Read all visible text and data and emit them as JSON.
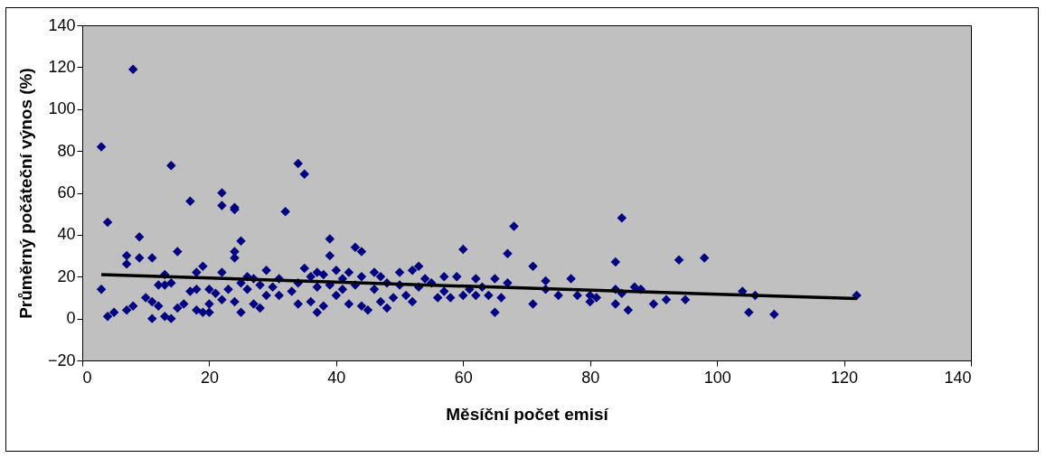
{
  "chart_data": {
    "type": "scatter",
    "xlabel": "Měsíční počet emisí",
    "ylabel": "Průměrný počáteční výnos (%)",
    "xlim": [
      0,
      140
    ],
    "ylim": [
      -20,
      140
    ],
    "xticks": [
      0,
      20,
      40,
      60,
      80,
      100,
      120,
      140
    ],
    "yticks": [
      -20,
      0,
      20,
      40,
      60,
      80,
      100,
      120,
      140
    ],
    "series": [
      {
        "type": "scatter",
        "marker": "diamond",
        "color": "#000080",
        "x": [
          3,
          3,
          4,
          4,
          5,
          7,
          7,
          7,
          8,
          8,
          9,
          9,
          10,
          11,
          11,
          11,
          12,
          12,
          13,
          13,
          13,
          14,
          14,
          14,
          15,
          15,
          16,
          17,
          17,
          18,
          18,
          18,
          19,
          19,
          20,
          20,
          20,
          21,
          22,
          22,
          22,
          22,
          23,
          24,
          24,
          24,
          24,
          24,
          25,
          25,
          25,
          26,
          26,
          27,
          27,
          28,
          28,
          29,
          29,
          30,
          31,
          31,
          32,
          33,
          34,
          34,
          34,
          35,
          35,
          36,
          36,
          37,
          37,
          37,
          38,
          38,
          39,
          39,
          39,
          40,
          40,
          41,
          41,
          42,
          42,
          43,
          43,
          44,
          44,
          44,
          45,
          46,
          46,
          47,
          47,
          48,
          48,
          49,
          50,
          50,
          51,
          52,
          52,
          53,
          53,
          54,
          55,
          56,
          57,
          57,
          58,
          59,
          60,
          60,
          61,
          62,
          62,
          63,
          64,
          65,
          65,
          66,
          67,
          67,
          68,
          71,
          71,
          73,
          73,
          75,
          77,
          78,
          80,
          80,
          81,
          84,
          84,
          84,
          85,
          85,
          86,
          87,
          88,
          90,
          92,
          94,
          95,
          98,
          104,
          105,
          106,
          109,
          122
        ],
        "values": [
          82,
          14,
          1,
          46,
          3,
          4,
          26,
          30,
          119,
          6,
          29,
          39,
          10,
          0,
          29,
          8,
          16,
          6,
          21,
          1,
          16,
          73,
          0,
          17,
          32,
          5,
          7,
          56,
          13,
          4,
          22,
          14,
          25,
          3,
          14,
          7,
          3,
          12,
          60,
          54,
          22,
          9,
          14,
          53,
          52,
          32,
          29,
          8,
          37,
          17,
          3,
          20,
          14,
          19,
          7,
          16,
          5,
          23,
          11,
          15,
          19,
          11,
          51,
          13,
          74,
          17,
          7,
          69,
          24,
          20,
          8,
          3,
          22,
          15,
          6,
          21,
          38,
          30,
          16,
          23,
          11,
          19,
          14,
          22,
          7,
          34,
          16,
          32,
          6,
          20,
          4,
          22,
          14,
          20,
          8,
          5,
          17,
          10,
          22,
          16,
          11,
          23,
          8,
          25,
          15,
          19,
          17,
          10,
          20,
          13,
          10,
          20,
          33,
          11,
          14,
          19,
          11,
          15,
          11,
          3,
          19,
          10,
          31,
          17,
          44,
          25,
          7,
          18,
          14,
          11,
          19,
          11,
          11,
          8,
          10,
          27,
          14,
          7,
          48,
          12,
          4,
          15,
          14,
          7,
          9,
          28,
          9,
          29,
          13,
          3,
          11,
          2,
          11
        ]
      },
      {
        "type": "line",
        "color": "#000000",
        "x": [
          3,
          122
        ],
        "values": [
          21,
          9.5
        ]
      }
    ]
  }
}
